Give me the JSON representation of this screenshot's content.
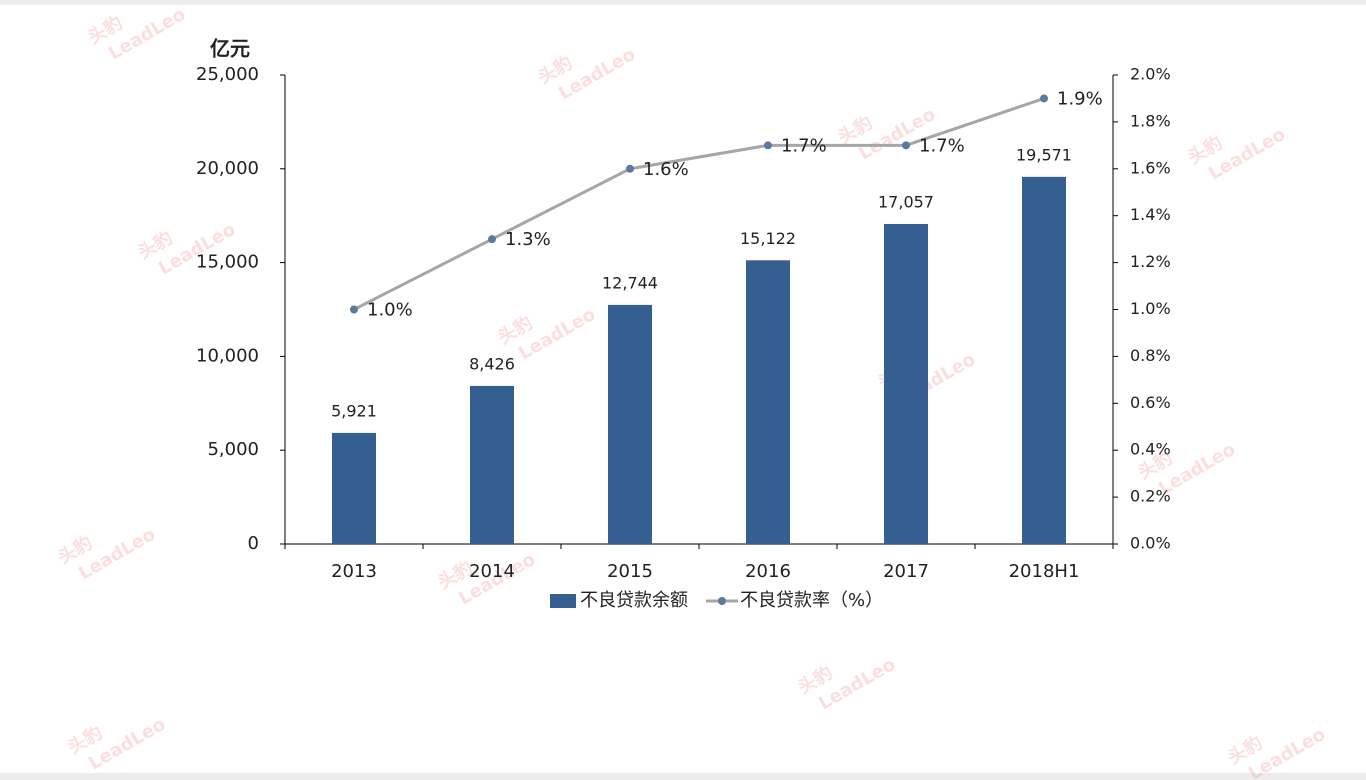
{
  "chart_data": {
    "type": "bar-line",
    "y_unit_label": "亿元",
    "categories": [
      "2013",
      "2014",
      "2015",
      "2016",
      "2017",
      "2018H1"
    ],
    "series": [
      {
        "name": "不良贷款余额",
        "type": "bar",
        "color": "#355e91",
        "values": [
          5921,
          8426,
          12744,
          15122,
          17057,
          19571
        ],
        "value_labels": [
          "5,921",
          "8,426",
          "12,744",
          "15,122",
          "17,057",
          "19,571"
        ]
      },
      {
        "name": "不良贷款率（%）",
        "type": "line",
        "axis": "y2",
        "color": "#a6a6a6",
        "marker_color": "#5a7a9e",
        "values": [
          1.0,
          1.3,
          1.6,
          1.7,
          1.7,
          1.9
        ],
        "value_labels": [
          "1.0%",
          "1.3%",
          "1.6%",
          "1.7%",
          "1.7%",
          "1.9%"
        ]
      }
    ],
    "ylim": [
      0,
      25000
    ],
    "yticks": [
      0,
      {
        "value": 5000,
        "label": "5,000"
      },
      {
        "value": 10000,
        "label": "10,000"
      },
      {
        "value": 15000,
        "label": "15,000"
      },
      {
        "value": 20000,
        "label": "20,000"
      },
      {
        "value": 25000,
        "label": "25,000"
      }
    ],
    "y2lim": [
      0,
      2.0
    ],
    "y2ticks": [
      {
        "value": 0,
        "label": "0.0%"
      },
      {
        "value": 0.2,
        "label": "0.2%"
      },
      {
        "value": 0.4,
        "label": "0.4%"
      },
      {
        "value": 0.6,
        "label": "0.6%"
      },
      {
        "value": 0.8,
        "label": "0.8%"
      },
      {
        "value": 1.0,
        "label": "1.0%"
      },
      {
        "value": 1.2,
        "label": "1.2%"
      },
      {
        "value": 1.4,
        "label": "1.4%"
      },
      {
        "value": 1.6,
        "label": "1.6%"
      },
      {
        "value": 1.8,
        "label": "1.8%"
      },
      {
        "value": 2.0,
        "label": "2.0%"
      }
    ],
    "grid": false,
    "legend": "bottom",
    "watermark": {
      "cn": "头豹",
      "en": "LeadLeo"
    }
  }
}
